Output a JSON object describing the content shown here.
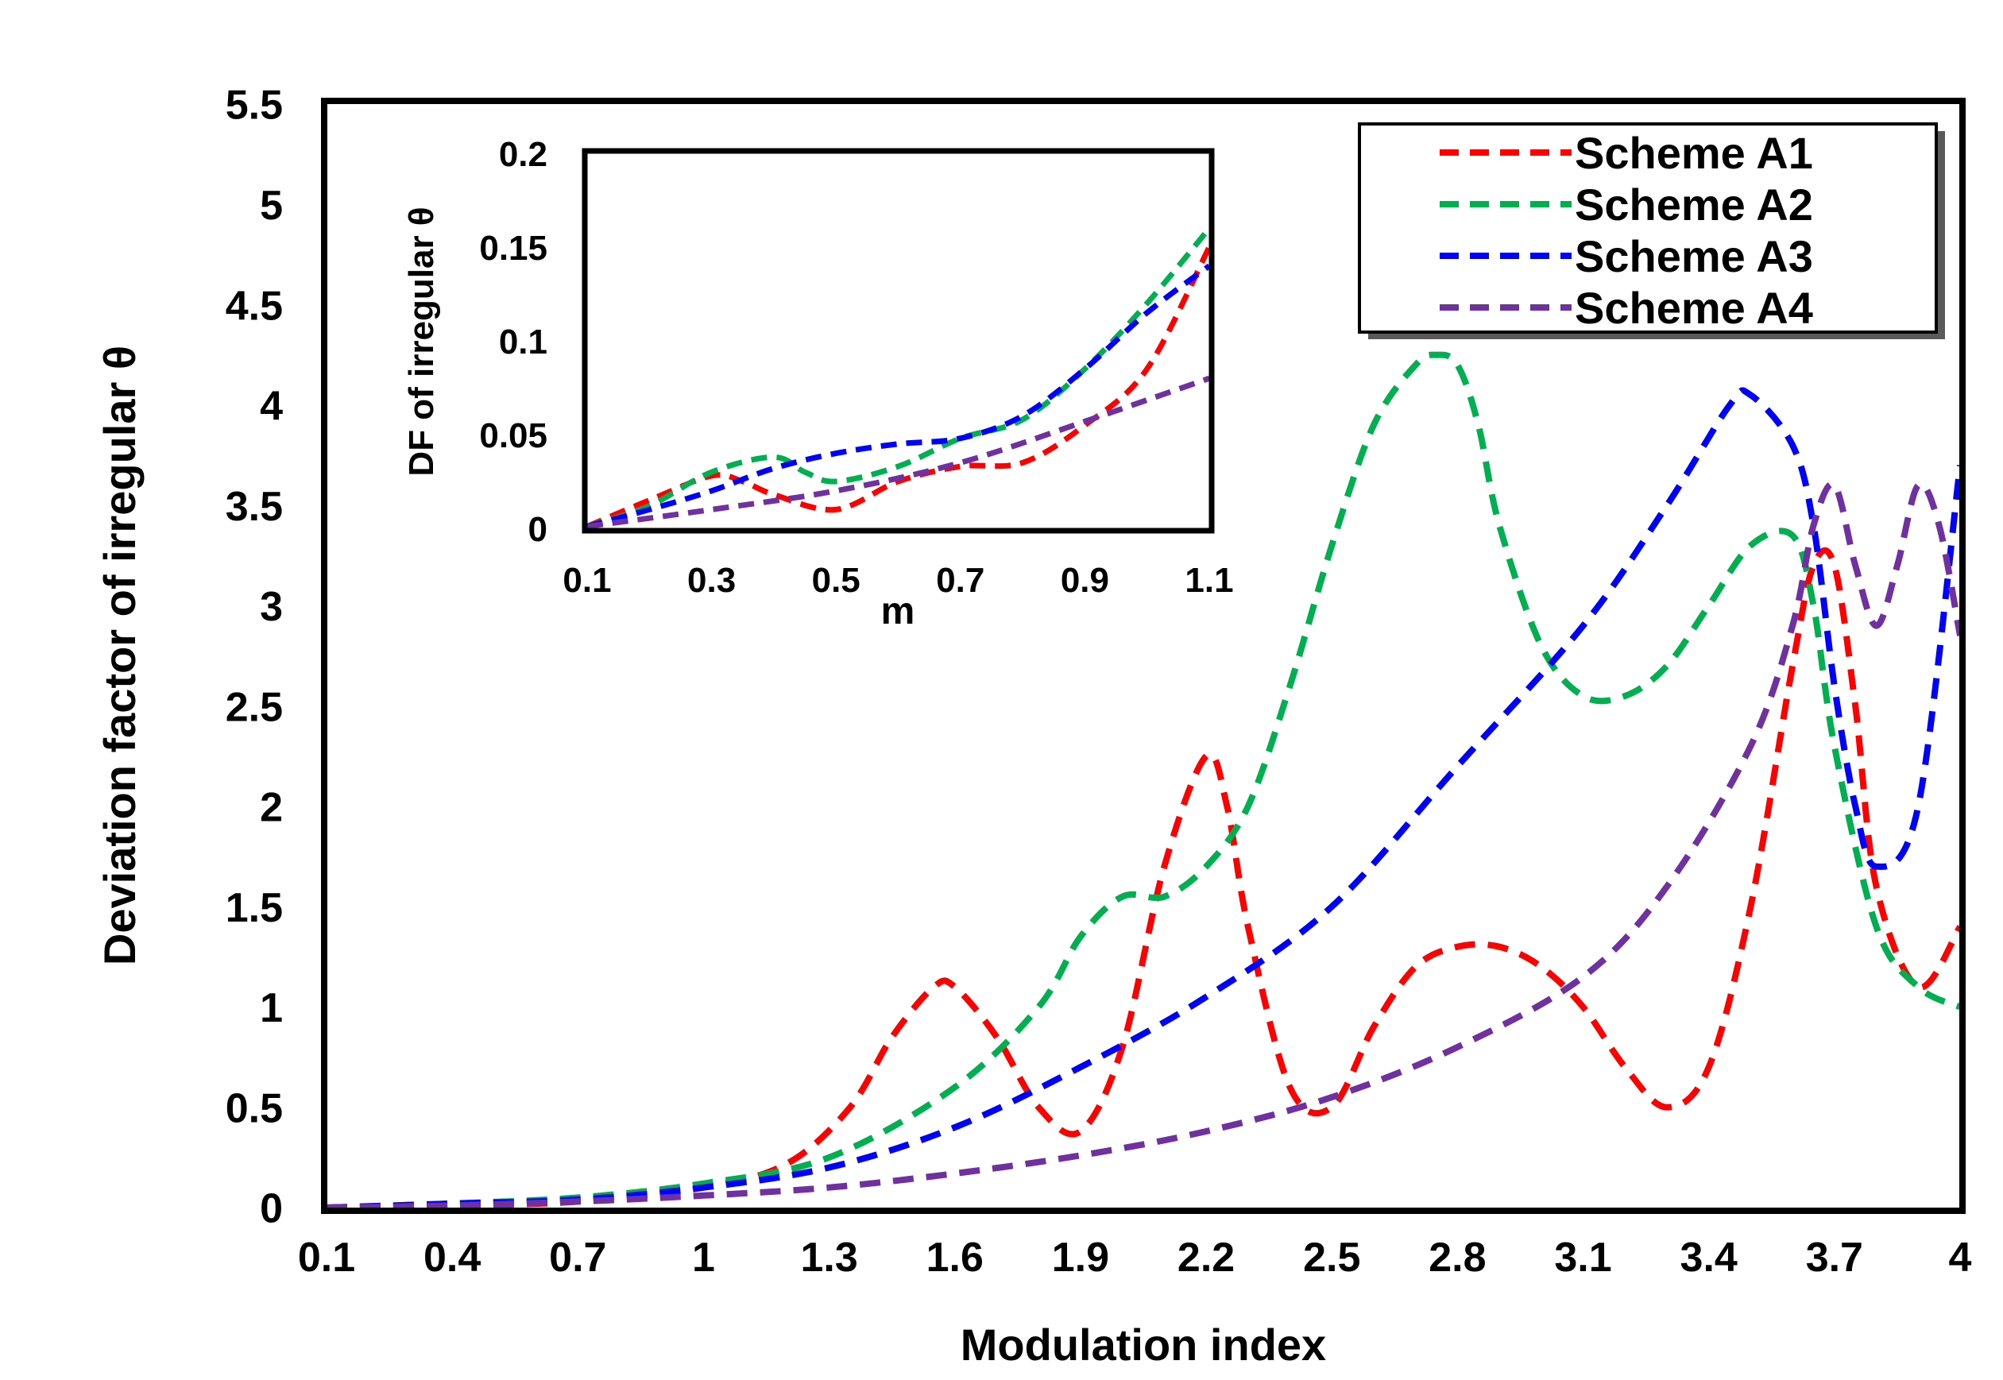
{
  "chart_data": [
    {
      "type": "line",
      "xlabel": "Modulation index",
      "ylabel": "Deviation factor of irregular θ",
      "xlim": [
        0.1,
        4
      ],
      "ylim": [
        0,
        5.5
      ],
      "x_ticks": [
        "0.1",
        "0.4",
        "0.7",
        "1",
        "1.3",
        "1.6",
        "1.9",
        "2.2",
        "2.5",
        "2.8",
        "3.1",
        "3.4",
        "3.7",
        "4"
      ],
      "y_ticks": [
        "0",
        "0.5",
        "1",
        "1.5",
        "2",
        "2.5",
        "3",
        "3.5",
        "4",
        "4.5",
        "5",
        "5.5"
      ],
      "legend_position": "top-right",
      "series": [
        {
          "name": "Scheme A1",
          "color": "#ff0000",
          "x": [
            0.1,
            0.4,
            0.7,
            1.0,
            1.2,
            1.35,
            1.45,
            1.55,
            1.6,
            1.7,
            1.8,
            1.9,
            2.0,
            2.1,
            2.2,
            2.25,
            2.3,
            2.4,
            2.5,
            2.6,
            2.7,
            2.8,
            2.9,
            3.0,
            3.1,
            3.2,
            3.3,
            3.4,
            3.5,
            3.6,
            3.65,
            3.7,
            3.75,
            3.8,
            3.9,
            4.0
          ],
          "y": [
            0,
            0.01,
            0.03,
            0.1,
            0.22,
            0.5,
            0.85,
            1.1,
            1.1,
            0.85,
            0.5,
            0.38,
            0.8,
            1.7,
            2.25,
            2.0,
            1.4,
            0.6,
            0.5,
            0.9,
            1.2,
            1.3,
            1.3,
            1.2,
            1.0,
            0.7,
            0.5,
            0.7,
            1.5,
            2.7,
            3.2,
            3.2,
            2.5,
            1.6,
            1.1,
            1.4
          ]
        },
        {
          "name": "Scheme A2",
          "color": "#00b050",
          "x": [
            0.1,
            0.4,
            0.7,
            1.0,
            1.3,
            1.6,
            1.8,
            1.9,
            2.0,
            2.1,
            2.2,
            2.3,
            2.4,
            2.5,
            2.6,
            2.7,
            2.75,
            2.8,
            2.85,
            2.9,
            3.0,
            3.1,
            3.2,
            3.3,
            3.4,
            3.5,
            3.6,
            3.65,
            3.7,
            3.8,
            3.9,
            4.0
          ],
          "y": [
            0,
            0.02,
            0.05,
            0.12,
            0.25,
            0.6,
            1.0,
            1.35,
            1.55,
            1.55,
            1.7,
            2.0,
            2.6,
            3.3,
            3.9,
            4.2,
            4.25,
            4.2,
            3.9,
            3.4,
            2.8,
            2.55,
            2.55,
            2.7,
            3.0,
            3.3,
            3.35,
            3.0,
            2.3,
            1.4,
            1.1,
            1.0
          ]
        },
        {
          "name": "Scheme A3",
          "color": "#0000ff",
          "x": [
            0.1,
            0.4,
            0.7,
            1.0,
            1.3,
            1.6,
            1.9,
            2.2,
            2.5,
            2.8,
            3.1,
            3.3,
            3.45,
            3.5,
            3.6,
            3.65,
            3.7,
            3.75,
            3.8,
            3.9,
            4.0
          ],
          "y": [
            0,
            0.02,
            0.04,
            0.1,
            0.2,
            0.4,
            0.7,
            1.05,
            1.5,
            2.2,
            2.9,
            3.5,
            4.0,
            4.05,
            3.8,
            3.4,
            2.6,
            2.0,
            1.7,
            2.0,
            3.7
          ]
        },
        {
          "name": "Scheme A4",
          "color": "#7030a0",
          "x": [
            0.1,
            0.4,
            0.7,
            1.0,
            1.3,
            1.6,
            1.9,
            2.2,
            2.5,
            2.8,
            3.1,
            3.3,
            3.5,
            3.6,
            3.65,
            3.7,
            3.75,
            3.8,
            3.85,
            3.9,
            3.95,
            4.0
          ],
          "y": [
            0,
            0.01,
            0.03,
            0.06,
            0.1,
            0.17,
            0.26,
            0.38,
            0.55,
            0.8,
            1.15,
            1.6,
            2.3,
            2.9,
            3.4,
            3.6,
            3.2,
            2.9,
            3.2,
            3.6,
            3.4,
            2.85
          ]
        }
      ]
    },
    {
      "type": "line",
      "xlabel": "m",
      "ylabel": "DF of irregular θ",
      "xlim": [
        0.1,
        1.1
      ],
      "ylim": [
        0,
        0.2
      ],
      "x_ticks": [
        "0.1",
        "0.3",
        "0.5",
        "0.7",
        "0.9",
        "1.1"
      ],
      "y_ticks": [
        "0",
        "0.05",
        "0.1",
        "0.15",
        "0.2"
      ],
      "series": [
        {
          "name": "Scheme A1",
          "color": "#ff0000",
          "x": [
            0.1,
            0.2,
            0.3,
            0.35,
            0.4,
            0.5,
            0.6,
            0.7,
            0.8,
            0.9,
            1.0,
            1.1
          ],
          "y": [
            0.001,
            0.015,
            0.028,
            0.025,
            0.018,
            0.01,
            0.025,
            0.033,
            0.035,
            0.055,
            0.085,
            0.15
          ]
        },
        {
          "name": "Scheme A2",
          "color": "#00b050",
          "x": [
            0.1,
            0.2,
            0.3,
            0.4,
            0.45,
            0.5,
            0.6,
            0.7,
            0.8,
            0.9,
            1.0,
            1.1
          ],
          "y": [
            0.001,
            0.012,
            0.03,
            0.038,
            0.03,
            0.025,
            0.033,
            0.048,
            0.058,
            0.085,
            0.12,
            0.16
          ]
        },
        {
          "name": "Scheme A3",
          "color": "#0000ff",
          "x": [
            0.1,
            0.2,
            0.3,
            0.4,
            0.5,
            0.6,
            0.7,
            0.8,
            0.9,
            1.0,
            1.1
          ],
          "y": [
            0.001,
            0.01,
            0.02,
            0.032,
            0.04,
            0.045,
            0.048,
            0.06,
            0.085,
            0.115,
            0.14
          ]
        },
        {
          "name": "Scheme A4",
          "color": "#7030a0",
          "x": [
            0.1,
            0.3,
            0.5,
            0.7,
            0.9,
            1.1
          ],
          "y": [
            0.001,
            0.01,
            0.02,
            0.035,
            0.057,
            0.08
          ]
        }
      ]
    }
  ]
}
